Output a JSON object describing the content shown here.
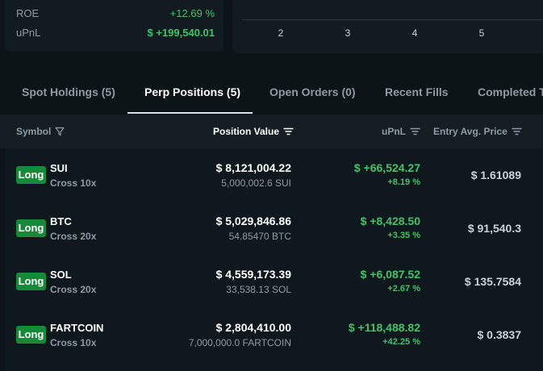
{
  "summary": {
    "roe_label": "ROE",
    "roe_value": "+12.69 %",
    "upnl_label": "uPnL",
    "upnl_value": "$ +199,540.01"
  },
  "chart": {
    "x_ticks": [
      "2",
      "3",
      "4",
      "5"
    ]
  },
  "tabs": [
    {
      "label": "Spot Holdings (5)",
      "active": false
    },
    {
      "label": "Perp Positions (5)",
      "active": true
    },
    {
      "label": "Open Orders (0)",
      "active": false
    },
    {
      "label": "Recent Fills",
      "active": false
    },
    {
      "label": "Completed Trades",
      "active": false
    }
  ],
  "table": {
    "headers": {
      "symbol": "Symbol",
      "position_value": "Position Value",
      "upnl": "uPnL",
      "entry": "Entry Avg. Price"
    },
    "rows": [
      {
        "side": "Long",
        "symbol": "SUI",
        "mode": "Cross 10x",
        "value": "$ 8,121,004.22",
        "size": "5,000,002.6 SUI",
        "pnl": "$ +66,524.27",
        "pnl_pct": "+8.19 %",
        "entry": "$ 1.61089"
      },
      {
        "side": "Long",
        "symbol": "BTC",
        "mode": "Cross 20x",
        "value": "$ 5,029,846.86",
        "size": "54.85470 BTC",
        "pnl": "$ +8,428.50",
        "pnl_pct": "+3.35 %",
        "entry": "$ 91,540.3"
      },
      {
        "side": "Long",
        "symbol": "SOL",
        "mode": "Cross 20x",
        "value": "$ 4,559,173.39",
        "size": "33,538.13 SOL",
        "pnl": "$ +6,087.52",
        "pnl_pct": "+2.67 %",
        "entry": "$ 135.7584"
      },
      {
        "side": "Long",
        "symbol": "FARTCOIN",
        "mode": "Cross 10x",
        "value": "$ 2,804,410.00",
        "size": "7,000,000.0 FARTCOIN",
        "pnl": "$ +118,488.82",
        "pnl_pct": "+42.25 %",
        "entry": "$ 0.3837"
      }
    ]
  },
  "colors": {
    "background": "#0d1418",
    "panel": "#111b20",
    "positive": "#3fc46a",
    "long_badge": "#178a3a",
    "muted_text": "#8e9ba4"
  }
}
